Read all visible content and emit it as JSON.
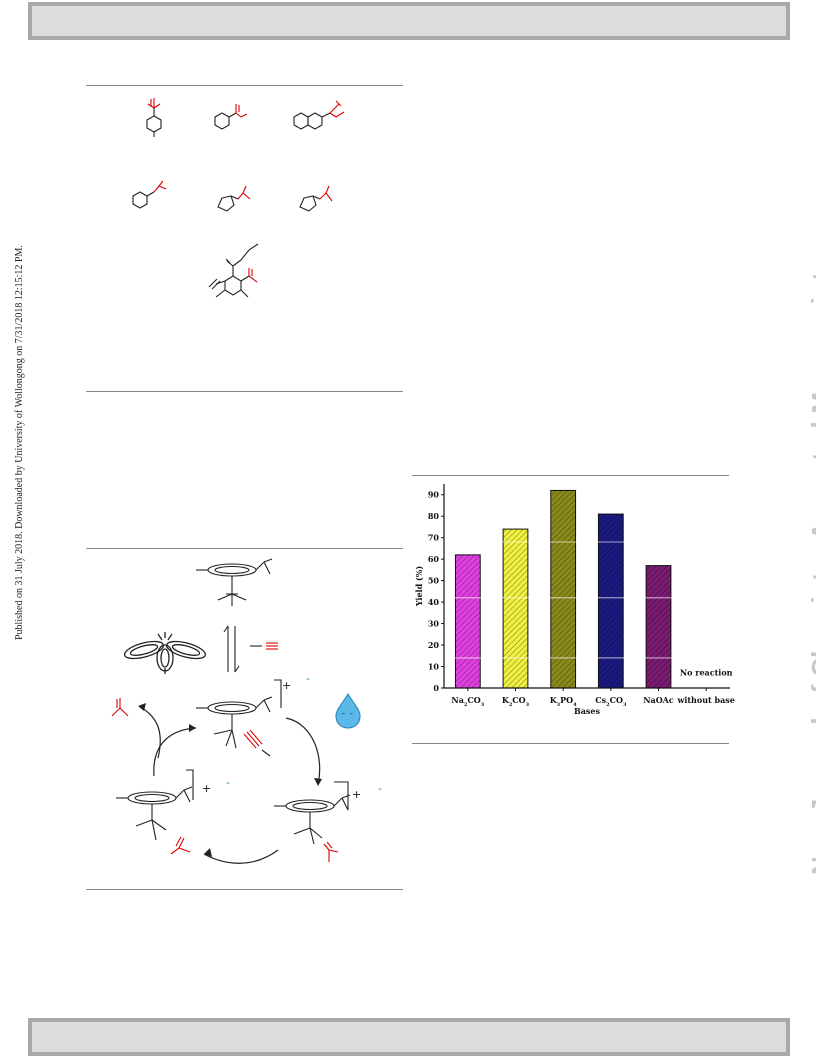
{
  "side_left_text": "Published on 31 July 2018. Downloaded by University of Wollongong on 7/31/2018 12:15:12 PM.",
  "side_right_text": "New Journal of Chemistry Accepted Manuscript",
  "scheme_catalytic_cycle": {
    "charge_plus": "+",
    "charge_minus": "-"
  },
  "chart_data": {
    "type": "bar",
    "categories": [
      "Na2CO3",
      "K2CO3",
      "K3PO4",
      "Cs2CO3",
      "NaOAc",
      "without base"
    ],
    "category_labels": [
      {
        "main": "Na",
        "sub1": "2",
        "mid": "CO",
        "sub2": "3"
      },
      {
        "main": "K",
        "sub1": "2",
        "mid": "CO",
        "sub2": "3"
      },
      {
        "main": "K",
        "sub1": "3",
        "mid": "PO",
        "sub2": "4"
      },
      {
        "main": "Cs",
        "sub1": "2",
        "mid": "CO",
        "sub2": "3"
      },
      {
        "main": "NaOAc",
        "sub1": "",
        "mid": "",
        "sub2": ""
      },
      {
        "main": "without base",
        "sub1": "",
        "mid": "",
        "sub2": ""
      }
    ],
    "values": [
      62,
      74,
      92,
      81,
      57,
      0
    ],
    "colors": [
      "#e040e0",
      "#f0f040",
      "#8a8a1a",
      "#1a1a80",
      "#7a1a70"
    ],
    "annotation": "No reaction",
    "xlabel": "Bases",
    "ylabel": "Yield (%)",
    "ylim": [
      0,
      95
    ],
    "yticks": [
      0,
      10,
      20,
      30,
      40,
      50,
      60,
      70,
      80,
      90
    ],
    "grid": true
  }
}
